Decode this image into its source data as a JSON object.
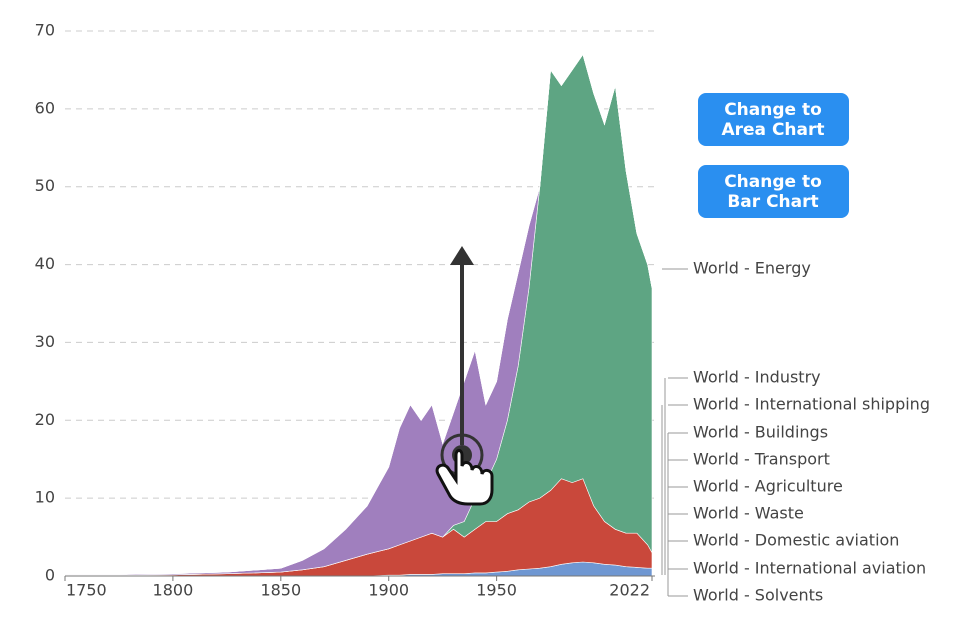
{
  "chart_data": {
    "type": "area",
    "x": [
      1750,
      1775,
      1800,
      1825,
      1850,
      1860,
      1870,
      1880,
      1890,
      1900,
      1905,
      1910,
      1915,
      1920,
      1925,
      1930,
      1935,
      1940,
      1945,
      1950,
      1955,
      1960,
      1965,
      1970,
      1975,
      1980,
      1985,
      1990,
      1995,
      2000,
      2005,
      2010,
      2015,
      2020,
      2022
    ],
    "xlim": [
      1750,
      2022
    ],
    "xticks": [
      1750,
      1800,
      1850,
      1900,
      1950,
      2022
    ],
    "ylim": [
      0,
      70
    ],
    "yticks": [
      0,
      10,
      20,
      30,
      40,
      50,
      60,
      70
    ],
    "grid": true,
    "series": [
      {
        "name": "World - Energy",
        "color": "#5ea583",
        "values": [
          0,
          0,
          0,
          0,
          0,
          0,
          0,
          0,
          0,
          0,
          0,
          0,
          0,
          0,
          0,
          0.5,
          2,
          4,
          5,
          8,
          12,
          18.5,
          27.5,
          40,
          54,
          50.5,
          53,
          54.5,
          53,
          51,
          57,
          46.5,
          38.5,
          36,
          34
        ]
      },
      {
        "name": "World - Industry",
        "color": "#6a3d8c",
        "values": [
          0,
          0,
          0,
          0,
          0,
          0,
          0,
          0,
          0,
          0,
          0,
          0,
          0,
          0,
          0,
          0,
          0,
          0,
          0,
          0,
          0,
          0,
          0,
          0,
          0,
          0,
          0,
          0,
          0,
          0,
          0,
          0,
          0,
          0,
          0
        ]
      },
      {
        "name": "World - International shipping",
        "color": "#1f7b84",
        "values": [
          0,
          0,
          0,
          0,
          0,
          0,
          0,
          0,
          0,
          0,
          0,
          0,
          0,
          0,
          0,
          0,
          0,
          0,
          0,
          0,
          0,
          0,
          0,
          0,
          0,
          0,
          0,
          0,
          0,
          0,
          0,
          0,
          0,
          0,
          0
        ]
      },
      {
        "name": "World - Buildings",
        "color": "#c9483b",
        "values": [
          0.1,
          0.1,
          0.15,
          0.3,
          0.5,
          0.8,
          1.2,
          2,
          2.8,
          3.4,
          3.9,
          4.3,
          4.8,
          5.3,
          4.7,
          5.7,
          4.7,
          5.6,
          6.6,
          6.5,
          7.4,
          7.7,
          8.6,
          9,
          9.8,
          11,
          10.3,
          10.7,
          7.3,
          5.5,
          4.6,
          4.3,
          4.4,
          3,
          2
        ]
      },
      {
        "name": "World - Transport",
        "color": "#a07fbe",
        "values": [
          0.1,
          0.1,
          0.15,
          0.2,
          0.5,
          1.2,
          2.3,
          4,
          6.2,
          10.5,
          15,
          17.5,
          15,
          16.5,
          12,
          14.5,
          18,
          19,
          10,
          10,
          13,
          12,
          8,
          0,
          0,
          0,
          0,
          0,
          0,
          0,
          0,
          0,
          0,
          0,
          0
        ]
      },
      {
        "name": "World - Agriculture",
        "color": "#6f97d2",
        "values": [
          0,
          0,
          0,
          0,
          0,
          0,
          0,
          0,
          0,
          0.1,
          0.1,
          0.2,
          0.2,
          0.2,
          0.3,
          0.3,
          0.3,
          0.4,
          0.4,
          0.5,
          0.6,
          0.8,
          0.9,
          1,
          1.2,
          1.5,
          1.7,
          1.8,
          1.7,
          1.5,
          1.4,
          1.2,
          1.1,
          1,
          1
        ]
      },
      {
        "name": "World - Waste",
        "color": "#8b4a1f",
        "values": [
          0,
          0,
          0,
          0,
          0,
          0,
          0,
          0,
          0,
          0,
          0,
          0,
          0,
          0,
          0,
          0,
          0,
          0,
          0,
          0,
          0,
          0,
          0,
          0,
          0,
          0,
          0,
          0,
          0,
          0,
          0,
          0,
          0,
          0,
          0
        ]
      },
      {
        "name": "World - Domestic aviation",
        "color": "#a07a45",
        "values": [
          0,
          0,
          0,
          0,
          0,
          0,
          0,
          0,
          0,
          0,
          0,
          0,
          0,
          0,
          0,
          0,
          0,
          0,
          0,
          0,
          0,
          0,
          0,
          0,
          0,
          0,
          0,
          0,
          0,
          0,
          0,
          0,
          0,
          0,
          0
        ]
      },
      {
        "name": "World - International aviation",
        "color": "#8c2230",
        "values": [
          0,
          0,
          0,
          0,
          0,
          0,
          0,
          0,
          0,
          0,
          0,
          0,
          0,
          0,
          0,
          0,
          0,
          0,
          0,
          0,
          0,
          0,
          0,
          0,
          0,
          0,
          0,
          0,
          0,
          0,
          0,
          0,
          0,
          0,
          0
        ]
      },
      {
        "name": "World - Solvents",
        "color": "#1b2f5c",
        "values": [
          0,
          0,
          0,
          0,
          0,
          0,
          0,
          0,
          0,
          0,
          0,
          0,
          0,
          0,
          0,
          0,
          0,
          0,
          0,
          0,
          0,
          0,
          0,
          0,
          0,
          0,
          0,
          0,
          0,
          0,
          0,
          0,
          0,
          0,
          0
        ]
      }
    ]
  },
  "buttons": [
    [
      "Change to",
      "Area Chart"
    ],
    [
      "Change to",
      "Bar Chart"
    ]
  ]
}
